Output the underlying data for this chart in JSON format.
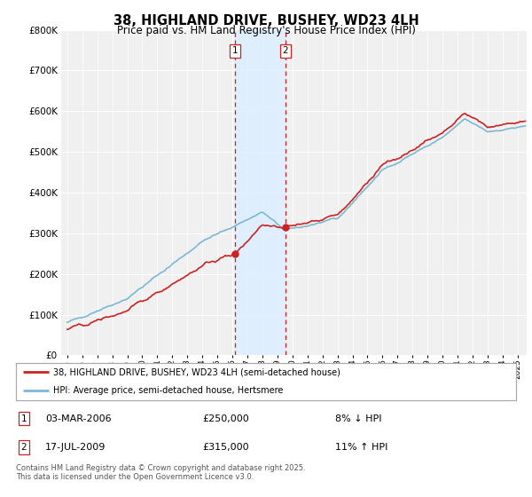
{
  "title": "38, HIGHLAND DRIVE, BUSHEY, WD23 4LH",
  "subtitle": "Price paid vs. HM Land Registry's House Price Index (HPI)",
  "legend_line1": "38, HIGHLAND DRIVE, BUSHEY, WD23 4LH (semi-detached house)",
  "legend_line2": "HPI: Average price, semi-detached house, Hertsmere",
  "transaction1_date": "03-MAR-2006",
  "transaction1_price": "£250,000",
  "transaction1_hpi": "8% ↓ HPI",
  "transaction2_date": "17-JUL-2009",
  "transaction2_price": "£315,000",
  "transaction2_hpi": "11% ↑ HPI",
  "footer": "Contains HM Land Registry data © Crown copyright and database right 2025.\nThis data is licensed under the Open Government Licence v3.0.",
  "hpi_color": "#7bb8d4",
  "price_color": "#cc2222",
  "shading_color": "#ddeeff",
  "ylim_min": 0,
  "ylim_max": 800000,
  "background_color": "#ffffff",
  "plot_bg_color": "#f0f0f0"
}
